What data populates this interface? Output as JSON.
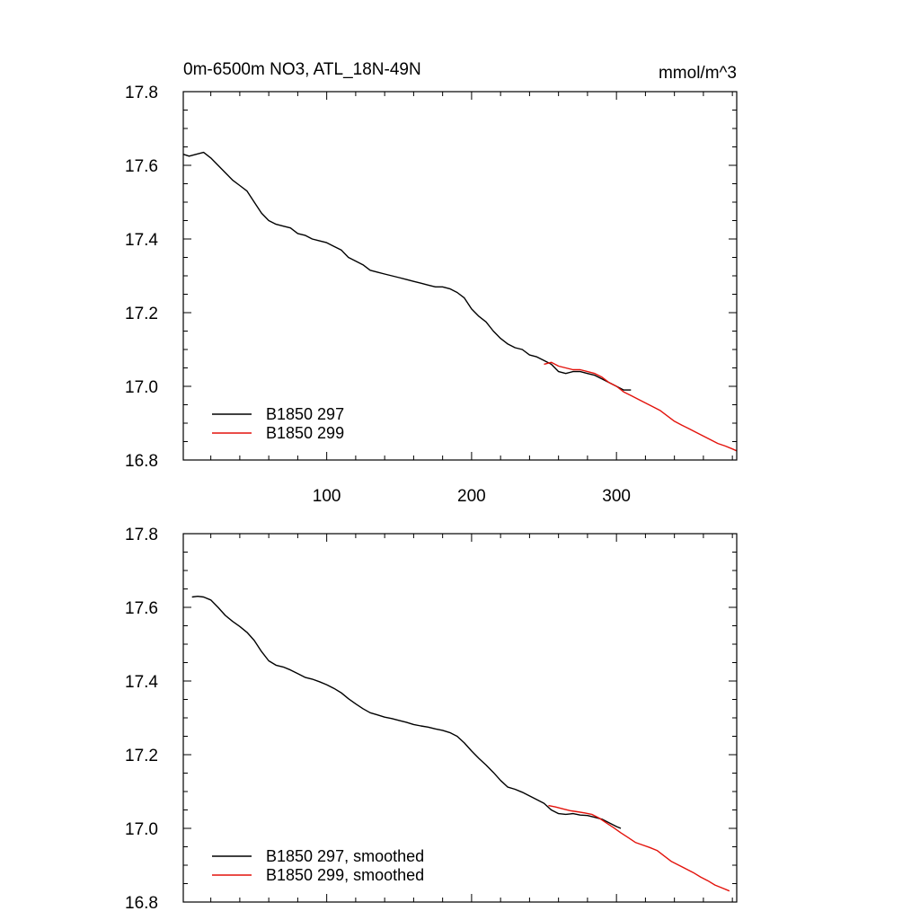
{
  "chart_data": [
    {
      "type": "line",
      "title": "0m-6500m NO3, ATL_18N-49N",
      "units": "mmol/m^3",
      "xlim": [
        1,
        383
      ],
      "ylim": [
        16.8,
        17.8
      ],
      "yticks": [
        "17.8",
        "17.6",
        "17.4",
        "17.2",
        "17.0",
        "16.8"
      ],
      "xticks": [
        "100",
        "200",
        "300"
      ],
      "legend_position": "bottom-left",
      "series": [
        {
          "name": "B1850 297",
          "color": "#000000",
          "x": [
            1,
            5,
            10,
            15,
            20,
            25,
            30,
            35,
            40,
            45,
            50,
            55,
            60,
            65,
            70,
            75,
            80,
            85,
            90,
            95,
            100,
            105,
            110,
            115,
            120,
            125,
            130,
            135,
            140,
            145,
            150,
            155,
            160,
            165,
            170,
            175,
            180,
            185,
            190,
            195,
            200,
            205,
            210,
            215,
            220,
            225,
            230,
            235,
            240,
            245,
            250,
            255,
            260,
            265,
            270,
            275,
            280,
            285,
            290,
            295,
            300,
            305,
            310
          ],
          "y": [
            17.63,
            17.625,
            17.63,
            17.635,
            17.62,
            17.6,
            17.58,
            17.56,
            17.545,
            17.53,
            17.5,
            17.47,
            17.45,
            17.44,
            17.435,
            17.43,
            17.415,
            17.41,
            17.4,
            17.395,
            17.39,
            17.38,
            17.37,
            17.35,
            17.34,
            17.33,
            17.315,
            17.31,
            17.305,
            17.3,
            17.295,
            17.29,
            17.285,
            17.28,
            17.275,
            17.27,
            17.27,
            17.265,
            17.255,
            17.24,
            17.21,
            17.19,
            17.175,
            17.15,
            17.13,
            17.115,
            17.105,
            17.1,
            17.085,
            17.08,
            17.07,
            17.06,
            17.04,
            17.035,
            17.04,
            17.04,
            17.035,
            17.03,
            17.02,
            17.01,
            17.0,
            16.99,
            16.99
          ]
        },
        {
          "name": "B1850 299",
          "color": "#e3120b",
          "x": [
            250,
            255,
            260,
            265,
            270,
            275,
            280,
            285,
            290,
            295,
            300,
            305,
            310,
            315,
            320,
            325,
            330,
            335,
            340,
            345,
            350,
            355,
            360,
            365,
            370,
            375,
            380,
            383
          ],
          "y": [
            17.06,
            17.065,
            17.055,
            17.05,
            17.045,
            17.045,
            17.04,
            17.035,
            17.025,
            17.01,
            17.0,
            16.985,
            16.975,
            16.965,
            16.955,
            16.945,
            16.935,
            16.92,
            16.905,
            16.895,
            16.885,
            16.875,
            16.865,
            16.855,
            16.845,
            16.838,
            16.83,
            16.825
          ]
        }
      ]
    },
    {
      "type": "line",
      "xlim": [
        1,
        383
      ],
      "ylim": [
        16.8,
        17.8
      ],
      "yticks": [
        "17.8",
        "17.6",
        "17.4",
        "17.2",
        "17.0",
        "16.8"
      ],
      "legend_position": "bottom-left",
      "series": [
        {
          "name": "B1850 297, smoothed",
          "color": "#000000",
          "x": [
            7,
            11,
            15,
            20,
            25,
            30,
            35,
            40,
            45,
            50,
            55,
            60,
            65,
            70,
            75,
            80,
            85,
            90,
            95,
            100,
            105,
            110,
            115,
            120,
            125,
            130,
            135,
            140,
            145,
            150,
            155,
            160,
            165,
            170,
            175,
            180,
            185,
            190,
            195,
            200,
            205,
            210,
            215,
            220,
            225,
            230,
            235,
            240,
            245,
            250,
            255,
            260,
            265,
            270,
            275,
            280,
            285,
            290,
            295,
            300,
            303
          ],
          "y": [
            17.628,
            17.63,
            17.628,
            17.62,
            17.6,
            17.578,
            17.562,
            17.548,
            17.532,
            17.51,
            17.48,
            17.455,
            17.443,
            17.438,
            17.43,
            17.42,
            17.41,
            17.405,
            17.398,
            17.39,
            17.38,
            17.368,
            17.352,
            17.338,
            17.325,
            17.314,
            17.308,
            17.302,
            17.298,
            17.293,
            17.288,
            17.282,
            17.278,
            17.275,
            17.27,
            17.266,
            17.26,
            17.25,
            17.232,
            17.21,
            17.19,
            17.172,
            17.152,
            17.13,
            17.112,
            17.106,
            17.098,
            17.088,
            17.078,
            17.068,
            17.05,
            17.04,
            17.038,
            17.04,
            17.036,
            17.035,
            17.03,
            17.025,
            17.015,
            17.005,
            17.0
          ]
        },
        {
          "name": "B1850 299, smoothed",
          "color": "#e3120b",
          "x": [
            253,
            258,
            263,
            268,
            273,
            278,
            283,
            288,
            293,
            298,
            303,
            308,
            313,
            318,
            323,
            328,
            333,
            338,
            343,
            348,
            353,
            358,
            363,
            368,
            373,
            378
          ],
          "y": [
            17.062,
            17.058,
            17.053,
            17.048,
            17.045,
            17.042,
            17.038,
            17.028,
            17.015,
            17.002,
            16.988,
            16.975,
            16.962,
            16.955,
            16.948,
            16.94,
            16.925,
            16.91,
            16.9,
            16.89,
            16.88,
            16.868,
            16.858,
            16.846,
            16.838,
            16.83
          ]
        }
      ]
    }
  ]
}
